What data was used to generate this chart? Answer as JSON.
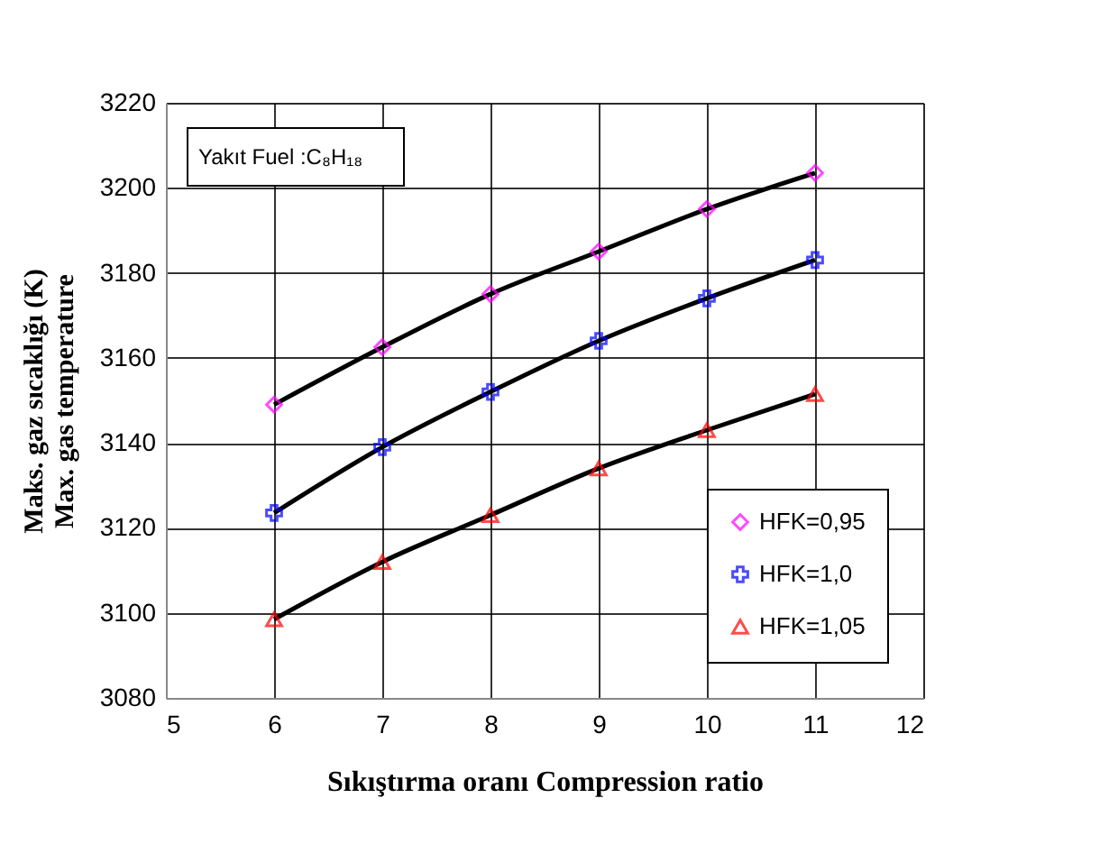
{
  "chart_data": {
    "type": "scatter",
    "xlabel": "Sıkıştırma oranı Compression ratio",
    "ylabel": "Maks. gaz sıcaklığı (K)\nMax. gas temperature",
    "annotations": [
      "Yakıt Fuel :C₈H₁₈"
    ],
    "x": [
      6,
      7,
      8,
      9,
      10,
      11
    ],
    "series": [
      {
        "type": "line",
        "color": "#000000",
        "values": [
          3149,
          3162.5,
          3175,
          3185,
          3195,
          3203.5
        ]
      },
      {
        "type": "line",
        "color": "#000000",
        "values": [
          3123.5,
          3139,
          3152,
          3164,
          3174,
          3183
        ]
      },
      {
        "type": "line",
        "color": "#000000",
        "values": [
          3098.5,
          3112,
          3123,
          3134,
          3143,
          3151.5
        ]
      },
      {
        "name": "HFK=0,95",
        "color": "#ff00ff",
        "marker": "diamond",
        "values": [
          3149,
          3162.5,
          3175,
          3185,
          3195,
          3203.5
        ]
      },
      {
        "name": "HFK=1,0",
        "color": "#0000ff",
        "marker": "cross",
        "values": [
          3123.5,
          3139,
          3152,
          3164,
          3174,
          3183
        ]
      },
      {
        "name": "HFK=1,05",
        "color": "#ff0000",
        "marker": "triangle",
        "values": [
          3098.5,
          3112,
          3123,
          3134,
          3143,
          3151.5
        ]
      }
    ],
    "xlim": [
      5,
      12
    ],
    "xticks": [
      5,
      6,
      7,
      8,
      9,
      10,
      11,
      12
    ],
    "ylim": [
      3080,
      3220
    ],
    "yticks": [
      3080,
      3100,
      3120,
      3140,
      3160,
      3180,
      3200,
      3220
    ],
    "grid": true,
    "legend": "bottom right"
  }
}
